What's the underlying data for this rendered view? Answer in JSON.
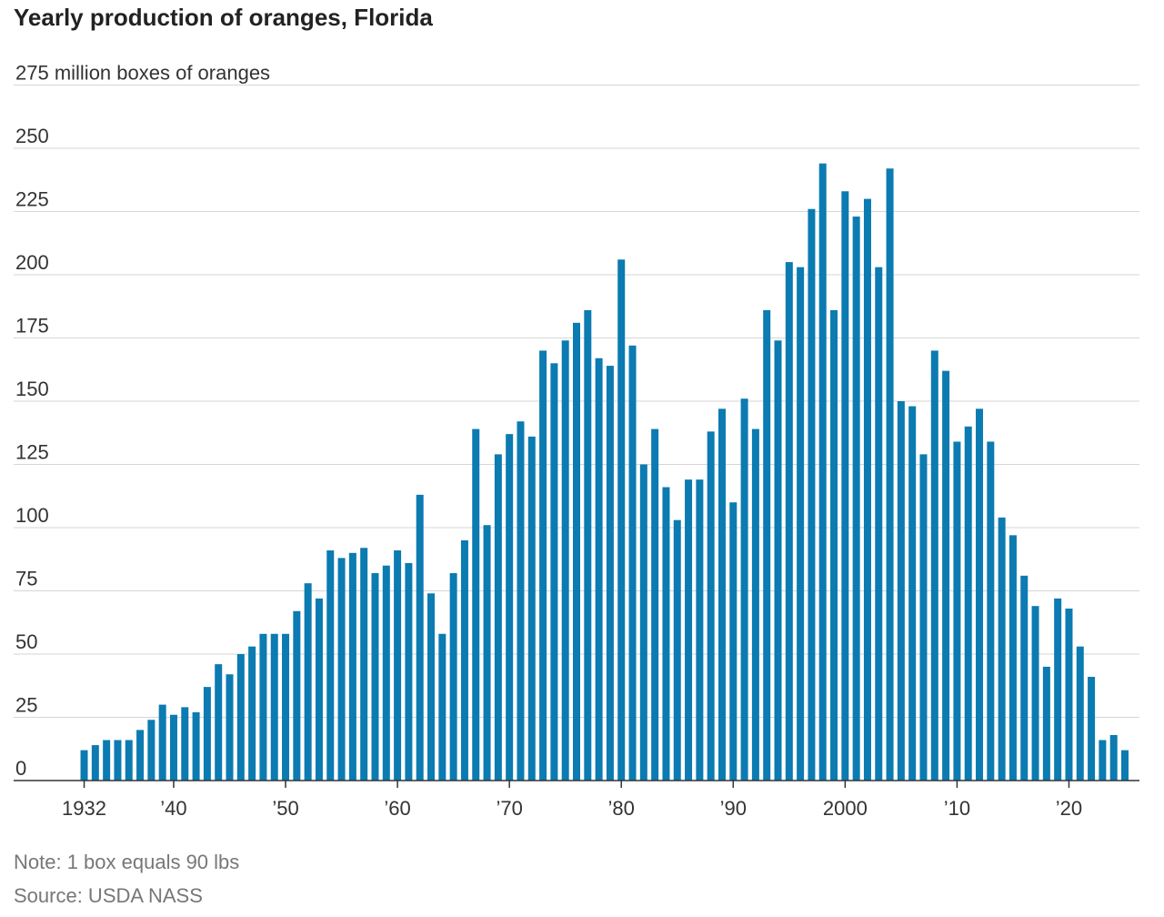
{
  "chart_data": {
    "type": "bar",
    "title": "Yearly production of oranges, Florida",
    "note": "Note: 1 box equals 90 lbs",
    "source": "Source: USDA NASS",
    "color": "#0b7bb1",
    "grid": true,
    "x": [
      1932,
      1933,
      1934,
      1935,
      1936,
      1937,
      1938,
      1939,
      1940,
      1941,
      1942,
      1943,
      1944,
      1945,
      1946,
      1947,
      1948,
      1949,
      1950,
      1951,
      1952,
      1953,
      1954,
      1955,
      1956,
      1957,
      1958,
      1959,
      1960,
      1961,
      1962,
      1963,
      1964,
      1965,
      1966,
      1967,
      1968,
      1969,
      1970,
      1971,
      1972,
      1973,
      1974,
      1975,
      1976,
      1977,
      1978,
      1979,
      1980,
      1981,
      1982,
      1983,
      1984,
      1985,
      1986,
      1987,
      1988,
      1989,
      1990,
      1991,
      1992,
      1993,
      1994,
      1995,
      1996,
      1997,
      1998,
      1999,
      2000,
      2001,
      2002,
      2003,
      2004,
      2005,
      2006,
      2007,
      2008,
      2009,
      2010,
      2011,
      2012,
      2013,
      2014,
      2015,
      2016,
      2017,
      2018,
      2019,
      2020,
      2021,
      2022,
      2023,
      2024,
      2025
    ],
    "values": [
      12,
      14,
      16,
      16,
      16,
      20,
      24,
      30,
      26,
      29,
      27,
      37,
      46,
      42,
      50,
      53,
      58,
      58,
      58,
      67,
      78,
      72,
      91,
      88,
      90,
      92,
      82,
      85,
      91,
      86,
      113,
      74,
      58,
      82,
      95,
      139,
      101,
      129,
      137,
      142,
      136,
      170,
      165,
      174,
      181,
      186,
      167,
      164,
      206,
      172,
      125,
      139,
      116,
      103,
      119,
      119,
      138,
      147,
      110,
      151,
      139,
      186,
      174,
      205,
      203,
      226,
      244,
      186,
      233,
      223,
      230,
      203,
      242,
      150,
      148,
      129,
      170,
      162,
      134,
      140,
      147,
      134,
      104,
      97,
      81,
      69,
      45,
      72,
      68,
      53,
      41,
      16,
      18,
      12
    ],
    "xlim": [
      1925.7,
      2026.3
    ],
    "xticks": [
      1932,
      {
        "value": 1940,
        "label": "’40"
      },
      {
        "value": 1950,
        "label": "’50"
      },
      {
        "value": 1960,
        "label": "’60"
      },
      {
        "value": 1970,
        "label": "’70"
      },
      {
        "value": 1980,
        "label": "’80"
      },
      {
        "value": 1990,
        "label": "’90"
      },
      2000,
      {
        "value": 2010,
        "label": "’10"
      },
      {
        "value": 2020,
        "label": "’20"
      }
    ],
    "ylim": [
      0,
      275
    ],
    "yticks": [
      0,
      25,
      50,
      75,
      100,
      125,
      150,
      175,
      200,
      225,
      250,
      {
        "value": 275,
        "label": "275 million boxes of oranges"
      }
    ]
  }
}
